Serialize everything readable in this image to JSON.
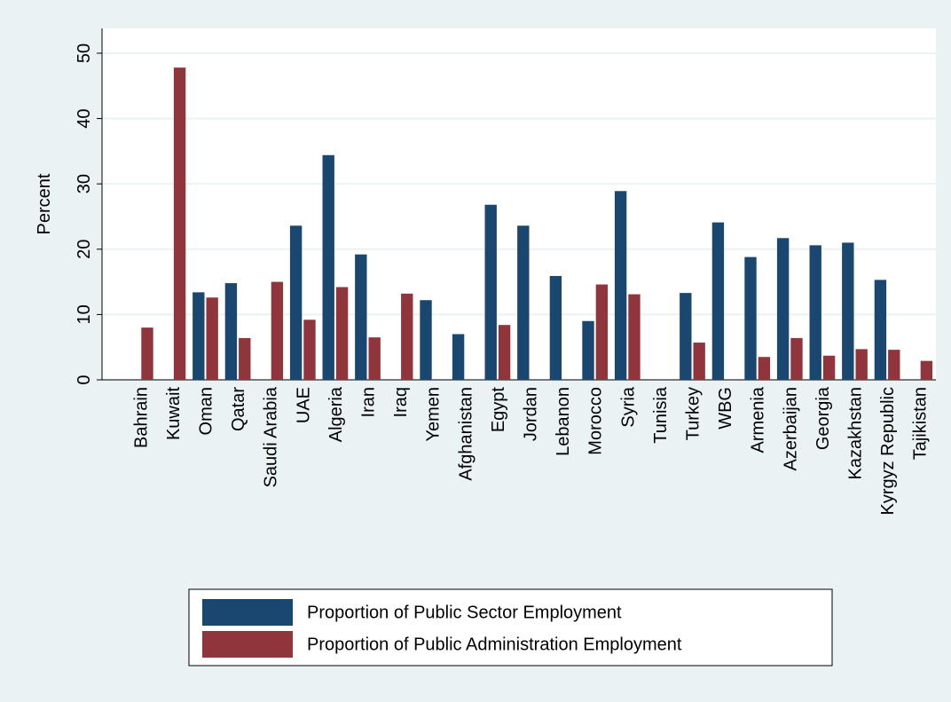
{
  "chart_data": {
    "type": "bar",
    "y_label": "Percent",
    "categories": [
      "Bahrain",
      "Kuwait",
      "Oman",
      "Qatar",
      "Saudi Arabia",
      "UAE",
      "Algeria",
      "Iran",
      "Iraq",
      "Yemen",
      "Afghanistan",
      "Egypt",
      "Jordan",
      "Lebanon",
      "Morocco",
      "Syria",
      "Tunisia",
      "Turkey",
      "WBG",
      "Armenia",
      "Azerbaijan",
      "Georgia",
      "Kazakhstan",
      "Kyrgyz Republic",
      "Tajikistan"
    ],
    "series": [
      {
        "name": "Proportion of Public Sector Employment",
        "color": "#1a476f",
        "values": [
          null,
          null,
          13.4,
          14.8,
          null,
          23.6,
          34.4,
          19.2,
          null,
          12.2,
          7,
          26.8,
          23.6,
          15.9,
          9,
          28.9,
          null,
          13.3,
          24.1,
          18.8,
          21.7,
          20.6,
          21,
          15.3,
          null
        ]
      },
      {
        "name": "Proportion of Public Administration Employment",
        "color": "#90353b",
        "values": [
          8,
          47.8,
          12.6,
          6.4,
          15,
          9.2,
          14.2,
          6.5,
          13.2,
          null,
          null,
          8.4,
          null,
          null,
          14.6,
          13.1,
          null,
          5.7,
          null,
          3.5,
          6.4,
          3.7,
          4.7,
          4.6,
          2.9
        ]
      }
    ],
    "ylim": [
      0,
      53.8
    ],
    "yticks": [
      0,
      10,
      20,
      30,
      40,
      50
    ],
    "grid": true,
    "legend": "bottom"
  }
}
